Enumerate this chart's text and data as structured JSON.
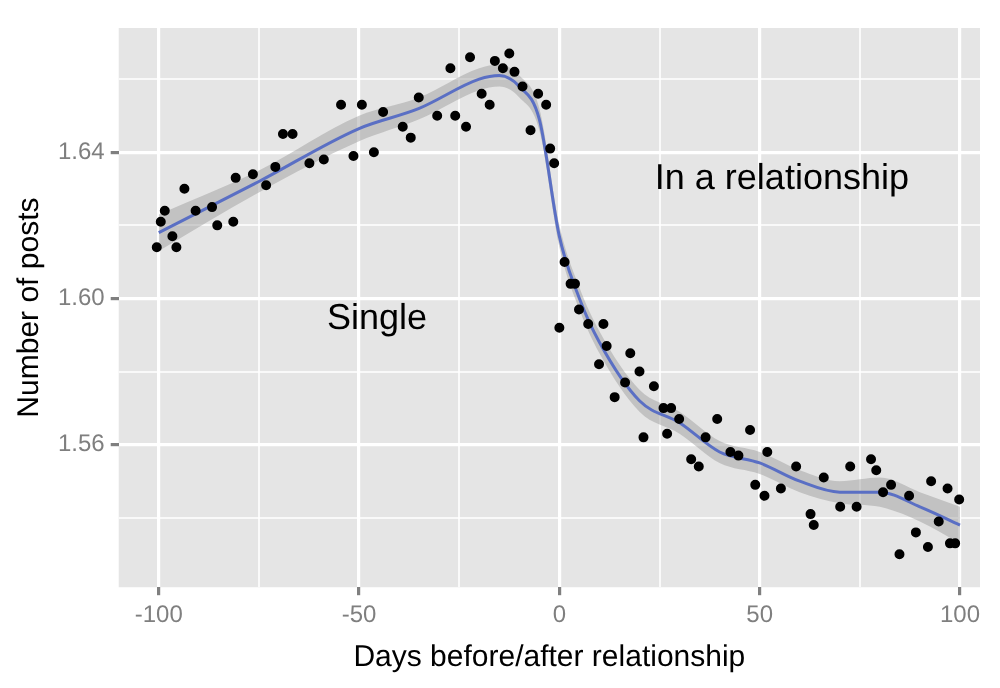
{
  "chart_data": {
    "type": "scatter",
    "xlabel": "Days before/after relationship",
    "ylabel": "Number of posts",
    "xlim": [
      -110,
      105
    ],
    "ylim": [
      1.521,
      1.674
    ],
    "xticks": [
      -100,
      {
        "value": -75,
        "label": null
      },
      -50,
      {
        "value": -25,
        "label": null
      },
      0,
      {
        "value": 25,
        "label": null
      },
      50,
      {
        "value": 75,
        "label": null
      },
      100
    ],
    "yticks": [
      {
        "value": 1.54,
        "label": null
      },
      1.56,
      {
        "value": 1.58,
        "label": null
      },
      "1.60",
      {
        "value": 1.62,
        "label": null
      },
      1.64,
      {
        "value": 1.66,
        "label": null
      }
    ],
    "grid": true,
    "legend": false,
    "annotations": [
      "Single",
      "In a relationship"
    ],
    "series": [
      {
        "color": "#000000",
        "marker": "circle",
        "x": [
          -100.5,
          -99.5,
          -98.5,
          -96.6,
          -95.6,
          -93.6,
          -90.8,
          -86.7,
          -85.4,
          -81.4,
          -80.8,
          -76.5,
          -73.2,
          -70.9,
          -69,
          -66.6,
          -62.4,
          -58.8,
          -54.5,
          -51.4,
          -49.3,
          -46.3,
          -44,
          -39.1,
          -37.1,
          -35.1,
          -30.5,
          -27.2,
          -26,
          -23.3,
          -22.3,
          -19.4,
          -17.4,
          -16.1,
          -14.1,
          -12.5,
          -11.2,
          -9.2,
          -7.2,
          -5.3,
          -3.3,
          -2.3,
          -1.3,
          0,
          1.3,
          2.8,
          3.9,
          4.9,
          7.2,
          9.9,
          11,
          11.8,
          13.8,
          16.4,
          17.7,
          20,
          21,
          23.6,
          26,
          26.9,
          27.9,
          29.9,
          32.9,
          34.8,
          36.5,
          39.4,
          42.7,
          44.7,
          47.6,
          48.9,
          51.2,
          51.9,
          55.3,
          59.1,
          62.7,
          63.5,
          66,
          70.1,
          72.6,
          74.2,
          77.8,
          79.1,
          80.8,
          82.8,
          84.9,
          87.3,
          89,
          92,
          92.8,
          94.7,
          96.9,
          97.5,
          98.8,
          99.8
        ],
        "values": [
          1.614,
          1.621,
          1.624,
          1.617,
          1.614,
          1.63,
          1.624,
          1.625,
          1.62,
          1.621,
          1.633,
          1.634,
          1.631,
          1.636,
          1.645,
          1.645,
          1.637,
          1.638,
          1.653,
          1.639,
          1.653,
          1.64,
          1.651,
          1.647,
          1.644,
          1.655,
          1.65,
          1.663,
          1.65,
          1.647,
          1.666,
          1.656,
          1.653,
          1.665,
          1.663,
          1.667,
          1.662,
          1.658,
          1.646,
          1.656,
          1.653,
          1.641,
          1.637,
          1.592,
          1.61,
          1.604,
          1.604,
          1.597,
          1.593,
          1.582,
          1.593,
          1.587,
          1.573,
          1.577,
          1.585,
          1.58,
          1.562,
          1.576,
          1.57,
          1.563,
          1.57,
          1.567,
          1.556,
          1.554,
          1.562,
          1.567,
          1.558,
          1.557,
          1.564,
          1.549,
          1.546,
          1.558,
          1.548,
          1.554,
          1.541,
          1.538,
          1.551,
          1.543,
          1.554,
          1.543,
          1.556,
          1.553,
          1.547,
          1.549,
          1.53,
          1.546,
          1.536,
          1.532,
          1.55,
          1.539,
          1.548,
          1.533,
          1.533,
          1.545
        ]
      },
      {
        "type": "line",
        "color": "#5a6fc4",
        "marker": "none",
        "line_style": "solid",
        "x": [
          -100,
          -75,
          -50,
          -35,
          -20,
          -15,
          -10,
          -5,
          0,
          5,
          10,
          20,
          30,
          40,
          50,
          60,
          70,
          80,
          90,
          100
        ],
        "values": [
          1.618,
          1.632,
          1.6465,
          1.652,
          1.66,
          1.661,
          1.658,
          1.649,
          1.617,
          1.6,
          1.588,
          1.572,
          1.566,
          1.558,
          1.555,
          1.55,
          1.547,
          1.547,
          1.543,
          1.538
        ],
        "lower": [
          1.613,
          1.629,
          1.643,
          1.649,
          1.657,
          1.658,
          1.655,
          1.646,
          1.614,
          1.597,
          1.585,
          1.569,
          1.563,
          1.555,
          1.552,
          1.547,
          1.544,
          1.543,
          1.539,
          1.533
        ],
        "upper": [
          1.623,
          1.635,
          1.65,
          1.655,
          1.663,
          1.664,
          1.661,
          1.652,
          1.62,
          1.603,
          1.591,
          1.575,
          1.569,
          1.561,
          1.558,
          1.553,
          1.55,
          1.551,
          1.547,
          1.543
        ]
      }
    ]
  }
}
